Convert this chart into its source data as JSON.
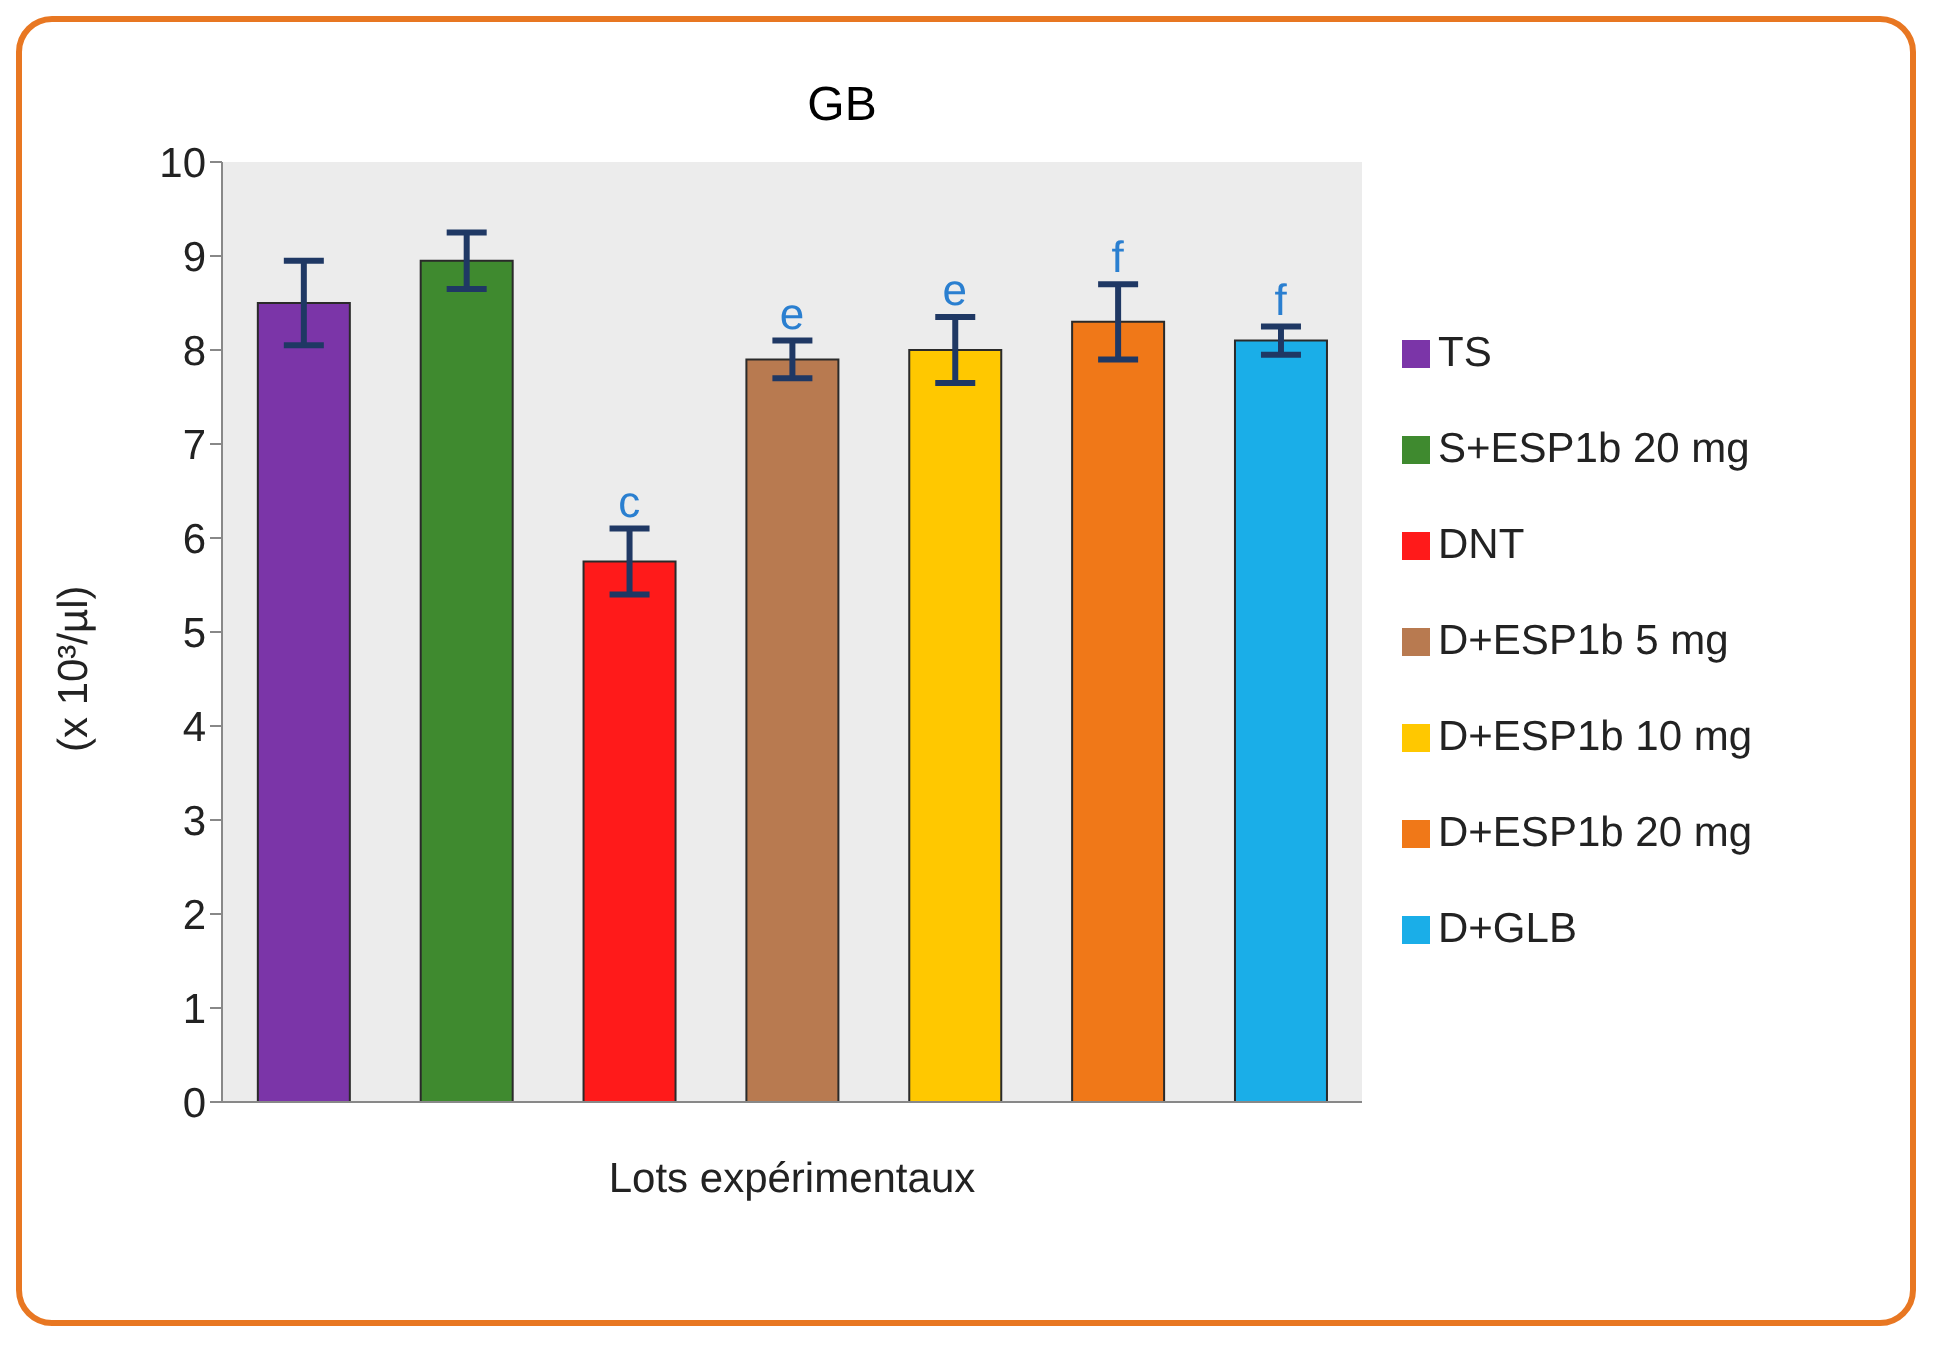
{
  "chart_data": {
    "type": "bar",
    "title": "GB",
    "xlabel": "Lots expérimentaux",
    "ylabel": "(x 10³/µl)",
    "categories": [
      null,
      null,
      null,
      null,
      null,
      null,
      null
    ],
    "series": [
      {
        "name": "TS",
        "color": "#7b35a8",
        "values": [
          8.5,
          null,
          null,
          null,
          null,
          null,
          null
        ],
        "errors": [
          0.45,
          null,
          null,
          null,
          null,
          null,
          null
        ]
      },
      {
        "name": "S+ESP1b 20 mg",
        "color": "#3f8a2f",
        "values": [
          null,
          8.95,
          null,
          null,
          null,
          null,
          null
        ],
        "errors": [
          null,
          0.3,
          null,
          null,
          null,
          null,
          null
        ]
      },
      {
        "name": "DNT",
        "color": "#ff1a1a",
        "values": [
          null,
          null,
          5.75,
          null,
          null,
          null,
          null
        ],
        "errors": [
          null,
          null,
          0.35,
          null,
          null,
          null,
          null
        ]
      },
      {
        "name": "D+ESP1b 5 mg",
        "color": "#b87a50",
        "values": [
          null,
          null,
          null,
          7.9,
          null,
          null,
          null
        ],
        "errors": [
          null,
          null,
          null,
          0.2,
          null,
          null,
          null
        ]
      },
      {
        "name": "D+ESP1b 10 mg",
        "color": "#ffc800",
        "values": [
          null,
          null,
          null,
          null,
          8.0,
          null,
          null
        ],
        "errors": [
          null,
          null,
          null,
          null,
          0.35,
          null,
          null
        ]
      },
      {
        "name": "D+ESP1b 20 mg",
        "color": "#f07818",
        "values": [
          null,
          null,
          null,
          null,
          null,
          8.3,
          null
        ],
        "errors": [
          null,
          null,
          null,
          null,
          null,
          0.4,
          null
        ]
      },
      {
        "name": "D+GLB",
        "color": "#1aaee8",
        "values": [
          null,
          null,
          null,
          null,
          null,
          null,
          8.1
        ],
        "errors": [
          null,
          null,
          null,
          null,
          null,
          null,
          0.15
        ]
      }
    ],
    "ylim": [
      0,
      10
    ],
    "yticks": [
      0,
      1,
      2,
      3,
      4,
      5,
      6,
      7,
      8,
      9,
      10
    ],
    "tick_labels": "y",
    "legend": "right",
    "annotations": [
      {
        "text": "c",
        "y": 6.1
      },
      {
        "text": "e",
        "y": 8.1
      },
      {
        "text": "e",
        "y": 8.35
      },
      {
        "text": "f",
        "y": 8.7
      },
      {
        "text": "f",
        "y": 8.25
      }
    ]
  }
}
